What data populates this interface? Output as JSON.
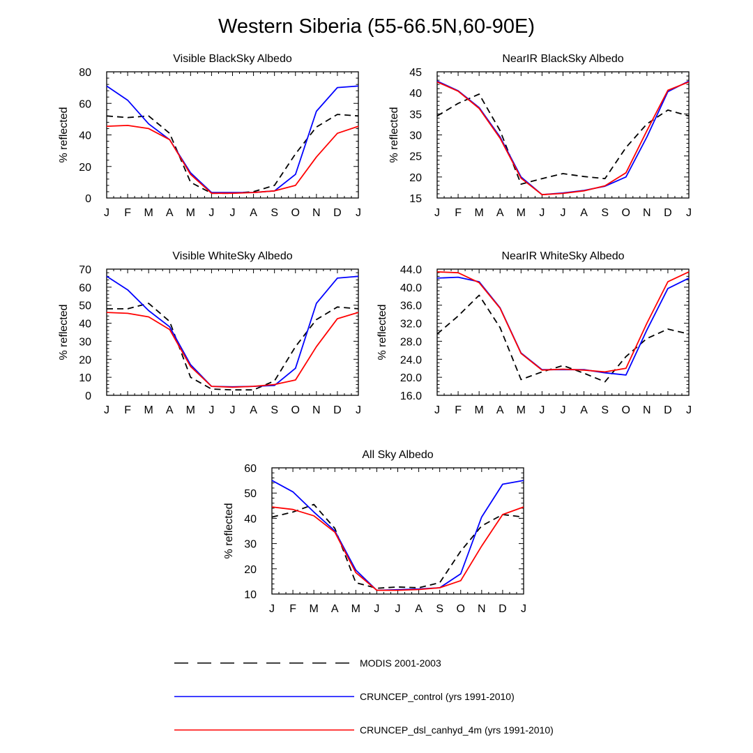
{
  "figure": {
    "title": "Western Siberia (55-66.5N,60-90E)"
  },
  "legend": [
    {
      "name": "MODIS 2001-2003",
      "color": "#000000",
      "dash": true
    },
    {
      "name": "CRUNCEP_control (yrs 1991-2010)",
      "color": "#0000ff",
      "dash": false
    },
    {
      "name": "CRUNCEP_dsl_canhyd_4m (yrs 1991-2010)",
      "color": "#ff0000",
      "dash": false
    }
  ],
  "chart_data": [
    {
      "type": "line",
      "title": "Visible BlackSky Albedo",
      "ylabel": "% reflected",
      "x": [
        "J",
        "F",
        "M",
        "A",
        "M",
        "J",
        "J",
        "A",
        "S",
        "O",
        "N",
        "D",
        "J"
      ],
      "ylim": [
        0,
        80
      ],
      "yticks": [
        0,
        20,
        40,
        60,
        80
      ],
      "ytick_labels": [
        "0",
        "20",
        "40",
        "60",
        "80"
      ],
      "series": [
        {
          "name": "MODIS 2001-2003",
          "values": [
            52,
            51,
            52,
            41,
            10,
            3,
            3,
            4,
            8,
            28,
            45,
            53,
            52
          ]
        },
        {
          "name": "CRUNCEP_control (yrs 1991-2010)",
          "values": [
            71,
            62,
            47,
            37,
            16,
            3.5,
            3.5,
            3.5,
            4.5,
            15,
            55,
            70,
            71
          ]
        },
        {
          "name": "CRUNCEP_dsl_canhyd_4m (yrs 1991-2010)",
          "values": [
            45.5,
            46,
            44,
            37,
            15,
            3,
            3,
            3.5,
            4.5,
            8,
            26,
            41,
            45.5
          ]
        }
      ]
    },
    {
      "type": "line",
      "title": "NearIR BlackSky Albedo",
      "ylabel": "% reflected",
      "x": [
        "J",
        "F",
        "M",
        "A",
        "M",
        "J",
        "J",
        "A",
        "S",
        "O",
        "N",
        "D",
        "J"
      ],
      "ylim": [
        15,
        45
      ],
      "yticks": [
        15,
        20,
        25,
        30,
        35,
        40,
        45
      ],
      "ytick_labels": [
        "15",
        "20",
        "25",
        "30",
        "35",
        "40",
        "45"
      ],
      "series": [
        {
          "name": "MODIS 2001-2003",
          "values": [
            34.5,
            37.5,
            39.7,
            31,
            18.3,
            19.6,
            20.8,
            20.1,
            19.6,
            27,
            32.6,
            35.9,
            34.5
          ]
        },
        {
          "name": "CRUNCEP_control (yrs 1991-2010)",
          "values": [
            42.8,
            40.5,
            36.5,
            29.5,
            20,
            15.8,
            16.2,
            16.8,
            17.8,
            20,
            29.5,
            40.3,
            42.8
          ]
        },
        {
          "name": "CRUNCEP_dsl_canhyd_4m (yrs 1991-2010)",
          "values": [
            42.6,
            40.4,
            36.3,
            29.2,
            19.7,
            15.8,
            16.1,
            16.7,
            17.9,
            21,
            31,
            40.6,
            42.6
          ]
        }
      ]
    },
    {
      "type": "line",
      "title": "Visible WhiteSky Albedo",
      "ylabel": "% reflected",
      "x": [
        "J",
        "F",
        "M",
        "A",
        "M",
        "J",
        "J",
        "A",
        "S",
        "O",
        "N",
        "D",
        "J"
      ],
      "ylim": [
        0,
        70
      ],
      "yticks": [
        0,
        10,
        20,
        30,
        40,
        50,
        60,
        70
      ],
      "ytick_labels": [
        "0",
        "10",
        "20",
        "30",
        "40",
        "50",
        "60",
        "70"
      ],
      "series": [
        {
          "name": "MODIS 2001-2003",
          "values": [
            48,
            48,
            51,
            41,
            10,
            3.5,
            3,
            3,
            8,
            27,
            42,
            49,
            48
          ]
        },
        {
          "name": "CRUNCEP_control (yrs 1991-2010)",
          "values": [
            66,
            58.5,
            47,
            38,
            17,
            5,
            4.7,
            5,
            5.5,
            15,
            51,
            65,
            66
          ]
        },
        {
          "name": "CRUNCEP_dsl_canhyd_4m (yrs 1991-2010)",
          "values": [
            46,
            45.5,
            43.5,
            36.5,
            16,
            5,
            4.5,
            5,
            6,
            8.5,
            27,
            42.5,
            46
          ]
        }
      ]
    },
    {
      "type": "line",
      "title": "NearIR WhiteSky Albedo",
      "ylabel": "% reflected",
      "x": [
        "J",
        "F",
        "M",
        "A",
        "M",
        "J",
        "J",
        "A",
        "S",
        "O",
        "N",
        "D",
        "J"
      ],
      "ylim": [
        16,
        44
      ],
      "yticks": [
        16,
        20,
        24,
        28,
        32,
        36,
        40,
        44
      ],
      "ytick_labels": [
        "16.0",
        "20.0",
        "24.0",
        "28.0",
        "32.0",
        "36.0",
        "40.0",
        "44.0"
      ],
      "series": [
        {
          "name": "MODIS 2001-2003",
          "values": [
            29.6,
            33.6,
            38.2,
            31,
            19.5,
            21.2,
            22.6,
            20.9,
            19,
            24.6,
            28.6,
            30.7,
            29.6
          ]
        },
        {
          "name": "CRUNCEP_control (yrs 1991-2010)",
          "values": [
            42,
            42.2,
            41.2,
            35.4,
            25.4,
            21.7,
            21.7,
            21.7,
            21,
            20.5,
            30.5,
            39.7,
            42
          ]
        },
        {
          "name": "CRUNCEP_dsl_canhyd_4m (yrs 1991-2010)",
          "values": [
            43.4,
            43.2,
            41,
            35.3,
            25.3,
            21.6,
            21.8,
            21.6,
            21.2,
            22,
            32,
            41.2,
            43.4
          ]
        }
      ]
    },
    {
      "type": "line",
      "title": "All Sky Albedo",
      "ylabel": "% reflected",
      "x": [
        "J",
        "F",
        "M",
        "A",
        "M",
        "J",
        "J",
        "A",
        "S",
        "O",
        "N",
        "D",
        "J"
      ],
      "ylim": [
        10,
        60
      ],
      "yticks": [
        10,
        20,
        30,
        40,
        50,
        60
      ],
      "ytick_labels": [
        "10",
        "20",
        "30",
        "40",
        "50",
        "60"
      ],
      "series": [
        {
          "name": "MODIS 2001-2003",
          "values": [
            40.5,
            42.5,
            45.5,
            36,
            14.5,
            12.3,
            12.8,
            12.5,
            14.5,
            27,
            37,
            41.5,
            40.5
          ]
        },
        {
          "name": "CRUNCEP_control (yrs 1991-2010)",
          "values": [
            55,
            50.5,
            42.5,
            35,
            19.5,
            11.5,
            11.7,
            12,
            12.5,
            18,
            40.5,
            53.5,
            55
          ]
        },
        {
          "name": "CRUNCEP_dsl_canhyd_4m (yrs 1991-2010)",
          "values": [
            44.5,
            43.5,
            41,
            34.5,
            18.5,
            11.5,
            11.5,
            11.8,
            12.5,
            15.3,
            29,
            41.5,
            44.5
          ]
        }
      ]
    }
  ]
}
